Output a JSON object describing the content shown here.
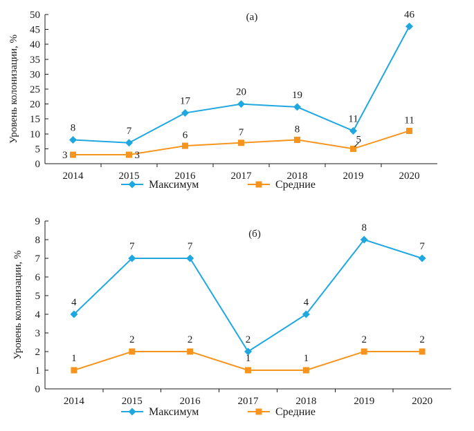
{
  "chart_data": [
    {
      "type": "line",
      "panel_label": "(а)",
      "ylabel": "Уровень колонизации, %",
      "x": [
        "2014",
        "2015",
        "2016",
        "2017",
        "2018",
        "2019",
        "2020"
      ],
      "ylim": [
        0,
        50
      ],
      "yticks": [
        "0",
        "5",
        "10",
        "15",
        "20",
        "25",
        "30",
        "35",
        "40",
        "45",
        "50"
      ],
      "series": [
        {
          "name": "Максимум",
          "values": [
            8,
            7,
            17,
            20,
            19,
            11,
            46
          ],
          "labels": [
            "8",
            "7",
            "17",
            "20",
            "19",
            "11",
            "46"
          ],
          "color": "#1ea7e1",
          "marker": "diamond"
        },
        {
          "name": "Средние",
          "values": [
            3,
            3,
            6,
            7,
            8,
            5,
            11
          ],
          "labels": [
            "3",
            "3",
            "6",
            "7",
            "8",
            "5",
            "11"
          ],
          "color": "#f7941d",
          "marker": "square"
        }
      ],
      "legend_position": "bottom",
      "grid": false
    },
    {
      "type": "line",
      "panel_label": "(б)",
      "ylabel": "Уровень колонизации, %",
      "x": [
        "2014",
        "2015",
        "2016",
        "2017",
        "2018",
        "2019",
        "2020"
      ],
      "ylim": [
        0,
        9
      ],
      "yticks": [
        "0",
        "1",
        "2",
        "3",
        "4",
        "5",
        "6",
        "7",
        "8",
        "9"
      ],
      "series": [
        {
          "name": "Максимум",
          "values": [
            4,
            7,
            7,
            2,
            4,
            8,
            7
          ],
          "labels": [
            "4",
            "7",
            "7",
            "2",
            "4",
            "8",
            "7"
          ],
          "color": "#1ea7e1",
          "marker": "diamond"
        },
        {
          "name": "Средние",
          "values": [
            1,
            2,
            2,
            1,
            1,
            2,
            2
          ],
          "labels": [
            "1",
            "2",
            "2",
            "1",
            "1",
            "2",
            "2"
          ],
          "color": "#f7941d",
          "marker": "square"
        }
      ],
      "legend_position": "bottom",
      "grid": false
    }
  ]
}
